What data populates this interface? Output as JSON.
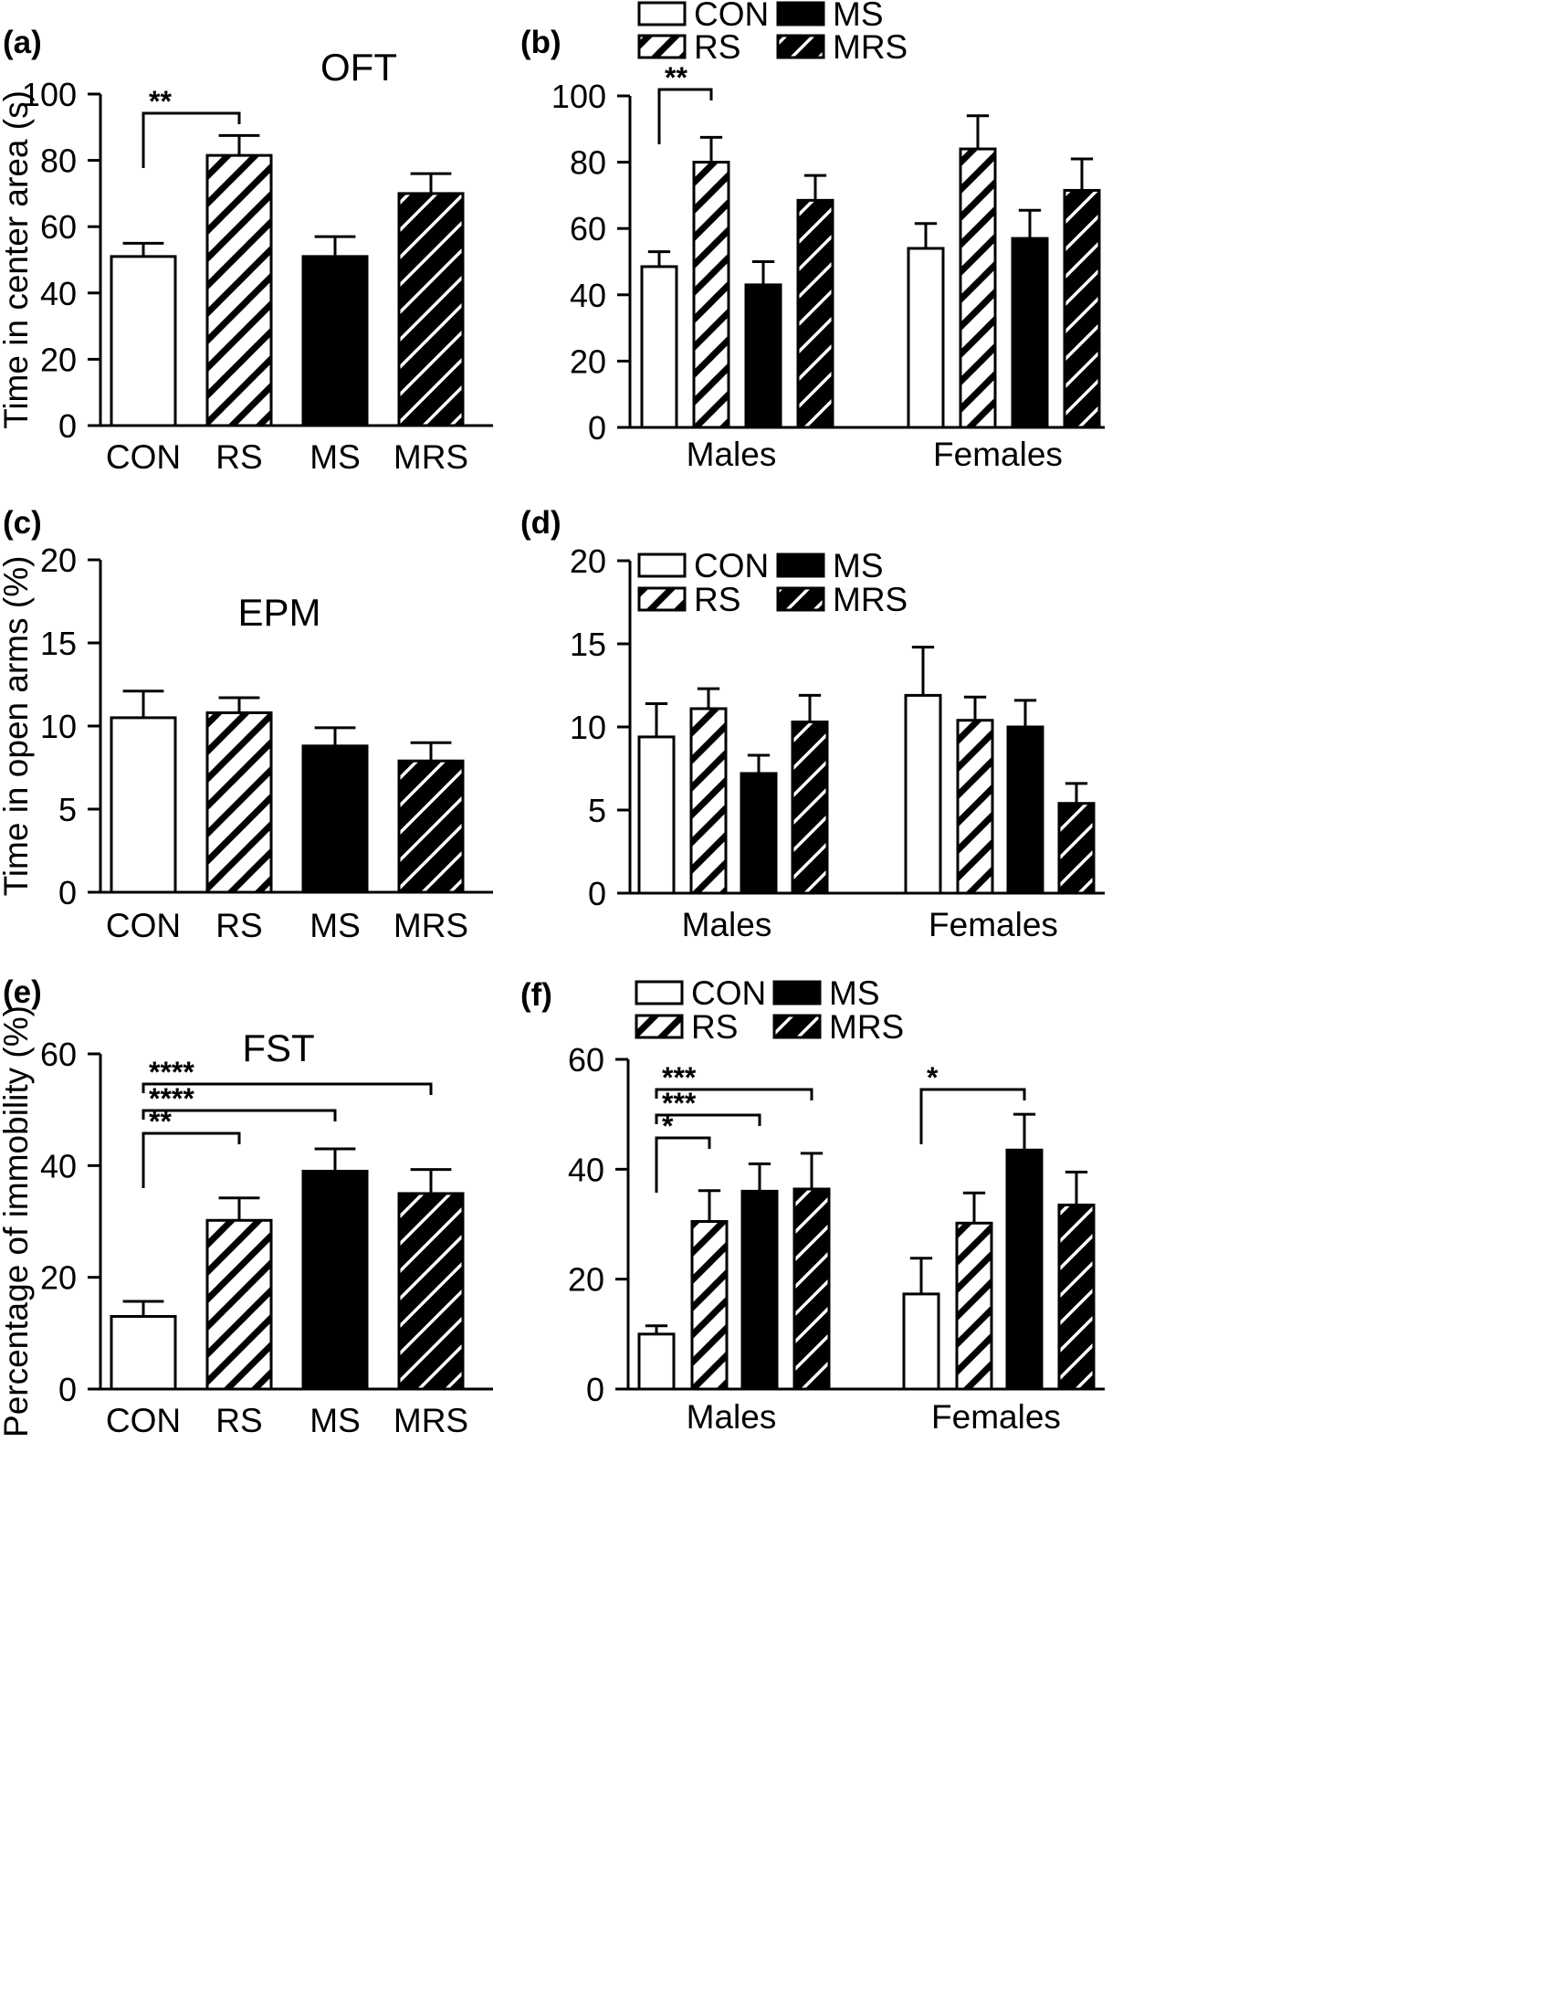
{
  "colors": {
    "CON": "#ffffff",
    "RS": "hatch-white",
    "MS": "#000000",
    "MRS": "hatch-black",
    "ink": "#000000"
  },
  "chart_data": [
    {
      "panel": "(a)",
      "type": "bar",
      "title": "OFT",
      "ylabel": "Time in center area (s)",
      "xlabel": "",
      "ylim": [
        0,
        100
      ],
      "yticks": [
        0,
        20,
        40,
        60,
        80,
        100
      ],
      "categories": [
        "CON",
        "RS",
        "MS",
        "MRS"
      ],
      "values": [
        51,
        81.5,
        51,
        70
      ],
      "errors": [
        4,
        6,
        6,
        6
      ],
      "significance": [
        {
          "from": "CON",
          "to": "RS",
          "label": "**"
        }
      ]
    },
    {
      "panel": "(b)",
      "type": "bar",
      "title": "",
      "ylabel": "",
      "xlabel": "",
      "ylim": [
        0,
        100
      ],
      "yticks": [
        0,
        20,
        40,
        60,
        80,
        100
      ],
      "categories": [
        "Males",
        "Females"
      ],
      "legend": {
        "position": "top",
        "entries": [
          "CON",
          "MS",
          "RS",
          "MRS"
        ]
      },
      "series": [
        {
          "name": "CON",
          "values": [
            48.5,
            54
          ],
          "errors": [
            4.5,
            7.5
          ]
        },
        {
          "name": "RS",
          "values": [
            80,
            84
          ],
          "errors": [
            7.5,
            10
          ]
        },
        {
          "name": "MS",
          "values": [
            43,
            57
          ],
          "errors": [
            7,
            8.5
          ]
        },
        {
          "name": "MRS",
          "values": [
            68.5,
            71.5
          ],
          "errors": [
            7.5,
            9.5
          ]
        }
      ],
      "significance": [
        {
          "group": "Males",
          "from": "CON",
          "to": "RS",
          "label": "**"
        }
      ]
    },
    {
      "panel": "(c)",
      "type": "bar",
      "title": "EPM",
      "ylabel": "Time in open arms (%)",
      "xlabel": "",
      "ylim": [
        0,
        20
      ],
      "yticks": [
        0,
        5,
        10,
        15,
        20
      ],
      "categories": [
        "CON",
        "RS",
        "MS",
        "MRS"
      ],
      "values": [
        10.5,
        10.8,
        8.8,
        7.9
      ],
      "errors": [
        1.6,
        0.9,
        1.1,
        1.1
      ],
      "significance": []
    },
    {
      "panel": "(d)",
      "type": "bar",
      "title": "",
      "ylabel": "",
      "xlabel": "",
      "ylim": [
        0,
        20
      ],
      "yticks": [
        0,
        5,
        10,
        15,
        20
      ],
      "categories": [
        "Males",
        "Females"
      ],
      "legend": {
        "position": "top",
        "entries": [
          "CON",
          "MS",
          "RS",
          "MRS"
        ]
      },
      "series": [
        {
          "name": "CON",
          "values": [
            9.4,
            11.9
          ],
          "errors": [
            2,
            2.9
          ]
        },
        {
          "name": "RS",
          "values": [
            11.1,
            10.4
          ],
          "errors": [
            1.2,
            1.4
          ]
        },
        {
          "name": "MS",
          "values": [
            7.2,
            10
          ],
          "errors": [
            1.1,
            1.6
          ]
        },
        {
          "name": "MRS",
          "values": [
            10.3,
            5.4
          ],
          "errors": [
            1.6,
            1.2
          ]
        }
      ],
      "significance": []
    },
    {
      "panel": "(e)",
      "type": "bar",
      "title": "FST",
      "ylabel": "Percentage of immobility (%)",
      "xlabel": "",
      "ylim": [
        0,
        60
      ],
      "yticks": [
        0,
        20,
        40,
        60
      ],
      "categories": [
        "CON",
        "RS",
        "MS",
        "MRS"
      ],
      "values": [
        13,
        30.2,
        39,
        35
      ],
      "errors": [
        2.7,
        4,
        4,
        4.3
      ],
      "significance": [
        {
          "from": "CON",
          "to": "RS",
          "label": "**"
        },
        {
          "from": "CON",
          "to": "MS",
          "label": "****"
        },
        {
          "from": "CON",
          "to": "MRS",
          "label": "****"
        }
      ]
    },
    {
      "panel": "(f)",
      "type": "bar",
      "title": "",
      "ylabel": "",
      "xlabel": "",
      "ylim": [
        0,
        60
      ],
      "yticks": [
        0,
        20,
        40,
        60
      ],
      "categories": [
        "Males",
        "Females"
      ],
      "legend": {
        "position": "top",
        "entries": [
          "CON",
          "MS",
          "RS",
          "MRS"
        ]
      },
      "series": [
        {
          "name": "CON",
          "values": [
            10,
            17.3
          ],
          "errors": [
            1.5,
            6.5
          ]
        },
        {
          "name": "RS",
          "values": [
            30.5,
            30.2
          ],
          "errors": [
            5.6,
            5.5
          ]
        },
        {
          "name": "MS",
          "values": [
            36,
            43.5
          ],
          "errors": [
            5,
            6.5
          ]
        },
        {
          "name": "MRS",
          "values": [
            36.4,
            33.5
          ],
          "errors": [
            6.5,
            6
          ]
        }
      ],
      "significance": [
        {
          "group": "Males",
          "from": "CON",
          "to": "RS",
          "label": "*"
        },
        {
          "group": "Males",
          "from": "CON",
          "to": "MS",
          "label": "***"
        },
        {
          "group": "Males",
          "from": "CON",
          "to": "MRS",
          "label": "***"
        },
        {
          "group": "Females",
          "from": "CON",
          "to": "MS",
          "label": "*"
        }
      ]
    }
  ]
}
